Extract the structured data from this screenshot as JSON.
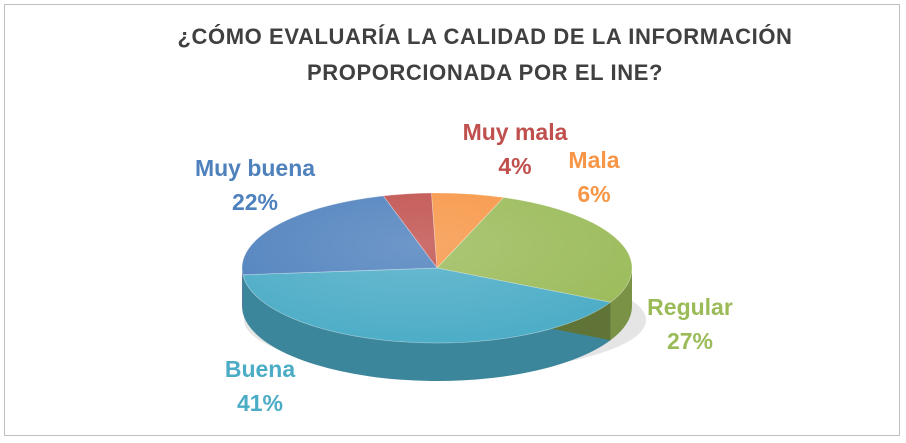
{
  "chart_data": {
    "type": "pie",
    "title": "¿CÓMO EVALUARÍA LA CALIDAD DE LA INFORMACIÓN PROPORCIONADA POR EL INE?",
    "categories": [
      "Muy mala",
      "Mala",
      "Regular",
      "Buena",
      "Muy buena"
    ],
    "values": [
      4,
      6,
      27,
      41,
      22
    ],
    "value_labels": [
      "4%",
      "6%",
      "27%",
      "41%",
      "22%"
    ],
    "colors": [
      "#c0504d",
      "#f79646",
      "#9bbb59",
      "#4bacc6",
      "#4f81bd"
    ],
    "style": "3d-pie",
    "legend": "none (data labels)"
  }
}
